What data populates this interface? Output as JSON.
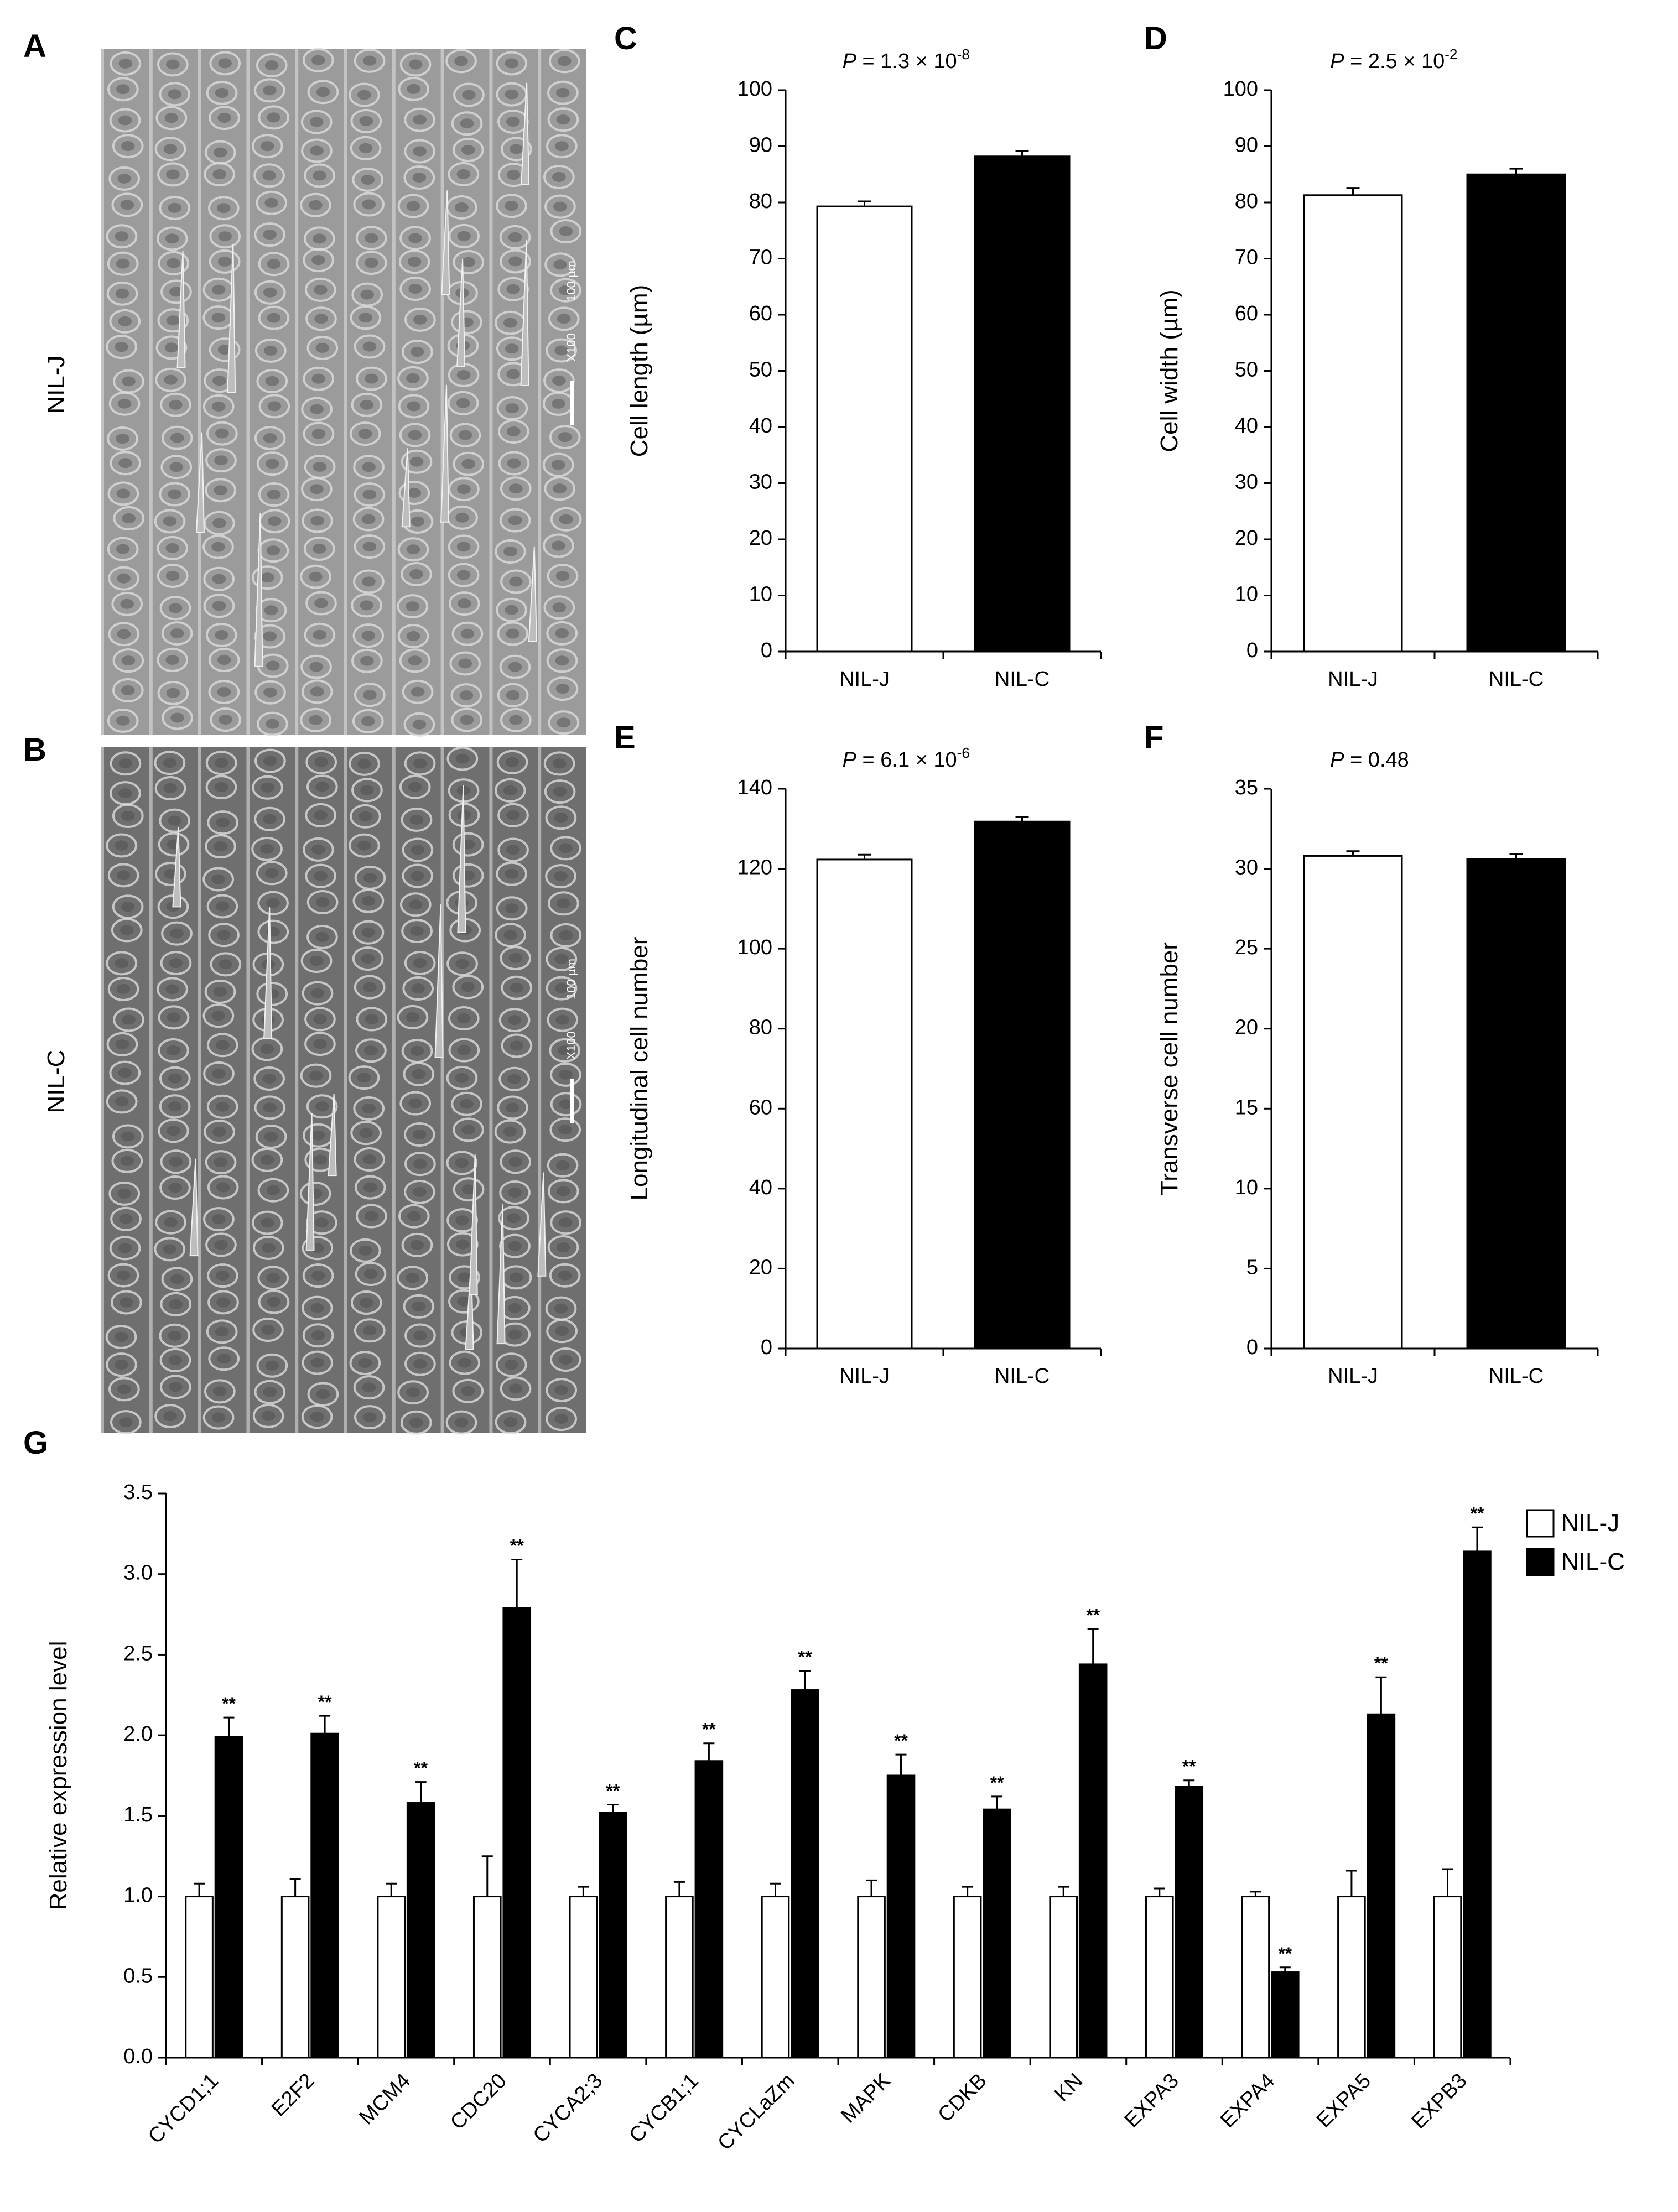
{
  "panels": {
    "A": "A",
    "B": "B",
    "C": "C",
    "D": "D",
    "E": "E",
    "F": "F",
    "G": "G"
  },
  "micrographs": [
    {
      "id": "A",
      "row_label": "NIL-J",
      "scale_text": "100 µm",
      "mag_text": "X100",
      "tone": "#9b9b9b"
    },
    {
      "id": "B",
      "row_label": "NIL-C",
      "scale_text": "100 µm",
      "mag_text": "X100",
      "tone": "#6f6f6f"
    }
  ],
  "colors": {
    "NIL-J": "#ffffff",
    "NIL-C": "#000000",
    "axis": "#000000"
  },
  "chart_data": [
    {
      "id": "C",
      "type": "bar",
      "categories": [
        "NIL-J",
        "NIL-C"
      ],
      "values": [
        79.3,
        88.2
      ],
      "errors": [
        0.9,
        1.0
      ],
      "ylabel": "Cell length (µm)",
      "ylim": [
        0,
        100
      ],
      "yticks": [
        0,
        10,
        20,
        30,
        40,
        50,
        60,
        70,
        80,
        90,
        100
      ],
      "pvalue": {
        "prefix": "P",
        "text": " = 1.3 × 10",
        "exp": "-8"
      }
    },
    {
      "id": "D",
      "type": "bar",
      "categories": [
        "NIL-J",
        "NIL-C"
      ],
      "values": [
        81.3,
        85.0
      ],
      "errors": [
        1.3,
        1.0
      ],
      "ylabel": "Cell width (µm)",
      "ylim": [
        0,
        100
      ],
      "yticks": [
        0,
        10,
        20,
        30,
        40,
        50,
        60,
        70,
        80,
        90,
        100
      ],
      "pvalue": {
        "prefix": "P",
        "text": " = 2.5 × 10",
        "exp": "-2"
      }
    },
    {
      "id": "E",
      "type": "bar",
      "categories": [
        "NIL-J",
        "NIL-C"
      ],
      "values": [
        122.3,
        131.8
      ],
      "errors": [
        1.2,
        1.2
      ],
      "ylabel": "Longitudinal cell number",
      "ylim": [
        0,
        140
      ],
      "yticks": [
        0,
        20,
        40,
        60,
        80,
        100,
        120,
        140
      ],
      "pvalue": {
        "prefix": "P",
        "text": " = 6.1 × 10",
        "exp": "-6"
      }
    },
    {
      "id": "F",
      "type": "bar",
      "categories": [
        "NIL-J",
        "NIL-C"
      ],
      "values": [
        30.8,
        30.6
      ],
      "errors": [
        0.3,
        0.3
      ],
      "ylabel": "Transverse cell number",
      "ylim": [
        0,
        35
      ],
      "yticks": [
        0,
        5,
        10,
        15,
        20,
        25,
        30,
        35
      ],
      "pvalue": {
        "prefix": "P",
        "text": " = 0.48",
        "exp": ""
      }
    },
    {
      "id": "G",
      "type": "bar",
      "categories": [
        "CYCD1;1",
        "E2F2",
        "MCM4",
        "CDC20",
        "CYCA2;3",
        "CYCB1;1",
        "CYCLaZm",
        "MAPK",
        "CDKB",
        "KN",
        "EXPA3",
        "EXPA4",
        "EXPA5",
        "EXPB3"
      ],
      "series": [
        {
          "name": "NIL-J",
          "values": [
            1.0,
            1.0,
            1.0,
            1.0,
            1.0,
            1.0,
            1.0,
            1.0,
            1.0,
            1.0,
            1.0,
            1.0,
            1.0,
            1.0
          ],
          "errors": [
            0.08,
            0.11,
            0.08,
            0.25,
            0.06,
            0.09,
            0.08,
            0.1,
            0.06,
            0.06,
            0.05,
            0.03,
            0.16,
            0.17
          ]
        },
        {
          "name": "NIL-C",
          "values": [
            1.99,
            2.01,
            1.58,
            2.79,
            1.52,
            1.84,
            2.28,
            1.75,
            1.54,
            2.44,
            1.68,
            0.53,
            2.13,
            3.14
          ],
          "errors": [
            0.12,
            0.11,
            0.13,
            0.3,
            0.05,
            0.11,
            0.12,
            0.13,
            0.08,
            0.22,
            0.04,
            0.03,
            0.23,
            0.15
          ]
        }
      ],
      "significance": [
        "**",
        "**",
        "**",
        "**",
        "**",
        "**",
        "**",
        "**",
        "**",
        "**",
        "**",
        "**",
        "**",
        "**"
      ],
      "ylabel": "Relative  expression  level",
      "ylim": [
        0,
        3.5
      ],
      "yticks": [
        0.0,
        0.5,
        1.0,
        1.5,
        2.0,
        2.5,
        3.0,
        3.5
      ],
      "legend": "top-right"
    }
  ]
}
